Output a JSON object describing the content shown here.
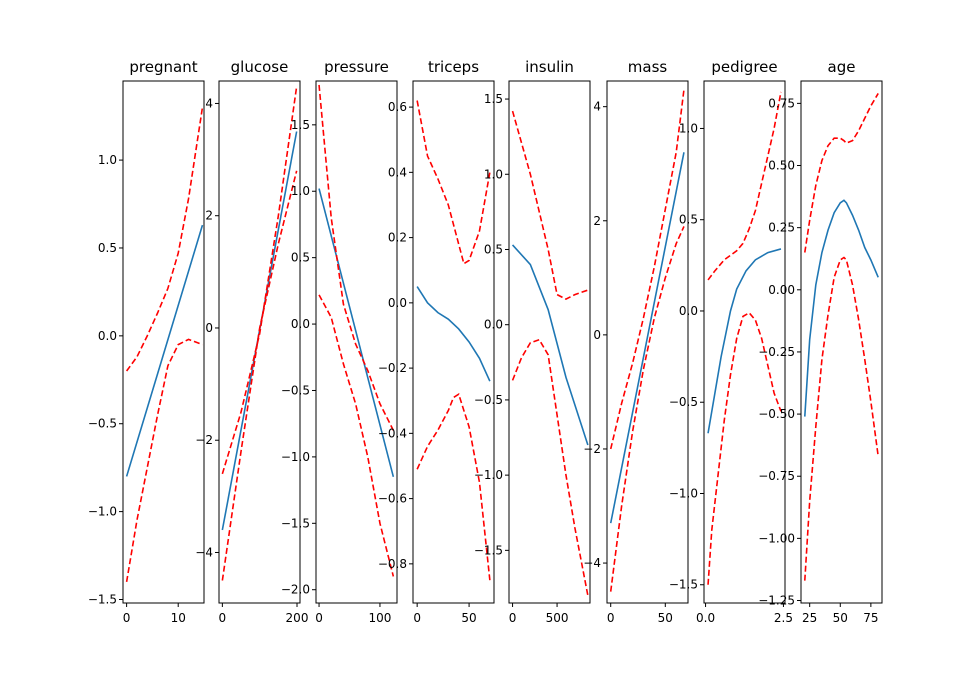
{
  "colors": {
    "fit": "#1f77b4",
    "band": "#ff0000"
  },
  "chart_data": [
    {
      "type": "line",
      "title": "pregnant",
      "xlim": [
        -0.7,
        15.0
      ],
      "ylim": [
        -1.52,
        1.45
      ],
      "xticks": [
        0,
        10
      ],
      "yticks": [
        -1.5,
        -1.0,
        -0.5,
        0.0,
        0.5,
        1.0
      ],
      "ytick_labels": [
        "−1.5",
        "−1.0",
        "−0.5",
        "0.0",
        "0.5",
        "1.0"
      ],
      "series": [
        {
          "role": "fit",
          "x": [
            0,
            14.7
          ],
          "y": [
            -0.8,
            0.63
          ]
        },
        {
          "role": "upper",
          "x": [
            0,
            2,
            4,
            6,
            8,
            10,
            12,
            14.7
          ],
          "y": [
            -0.2,
            -0.12,
            0.0,
            0.13,
            0.27,
            0.47,
            0.78,
            1.3
          ]
        },
        {
          "role": "lower",
          "x": [
            0,
            2,
            4,
            6,
            8,
            10,
            12,
            14.7
          ],
          "y": [
            -1.4,
            -1.05,
            -0.75,
            -0.45,
            -0.17,
            -0.05,
            -0.02,
            -0.05
          ]
        }
      ]
    },
    {
      "type": "line",
      "title": "glucose",
      "xlim": [
        -9,
        208
      ],
      "ylim": [
        -4.9,
        4.4
      ],
      "xticks": [
        0,
        200
      ],
      "yticks": [
        -4,
        -2,
        0,
        2,
        4
      ],
      "ytick_labels": [
        "−4",
        "−2",
        "0",
        "2",
        "4"
      ],
      "series": [
        {
          "role": "fit",
          "x": [
            0,
            199
          ],
          "y": [
            -3.6,
            3.5
          ]
        },
        {
          "role": "upper",
          "x": [
            0,
            50,
            100,
            150,
            199
          ],
          "y": [
            -2.6,
            -1.5,
            -0.1,
            2.0,
            4.3
          ]
        },
        {
          "role": "lower",
          "x": [
            0,
            50,
            100,
            150,
            199
          ],
          "y": [
            -4.5,
            -2.2,
            0.0,
            1.5,
            2.8
          ]
        }
      ]
    },
    {
      "type": "line",
      "title": "pressure",
      "xlim": [
        -5,
        128
      ],
      "ylim": [
        -2.1,
        1.83
      ],
      "xticks": [
        0,
        100
      ],
      "yticks": [
        -2.0,
        -1.5,
        -1.0,
        -0.5,
        0.0,
        0.5,
        1.0,
        1.5
      ],
      "ytick_labels": [
        "−2.0",
        "−1.5",
        "−1.0",
        "−0.5",
        "0.0",
        "0.5",
        "1.0",
        "1.5"
      ],
      "series": [
        {
          "role": "fit",
          "x": [
            0,
            122
          ],
          "y": [
            1.02,
            -1.15
          ]
        },
        {
          "role": "upper",
          "x": [
            0,
            20,
            40,
            60,
            80,
            100,
            122
          ],
          "y": [
            1.8,
            0.8,
            0.15,
            -0.15,
            -0.35,
            -0.6,
            -0.8
          ]
        },
        {
          "role": "lower",
          "x": [
            0,
            20,
            40,
            60,
            80,
            100,
            122
          ],
          "y": [
            0.22,
            0.05,
            -0.3,
            -0.6,
            -1.0,
            -1.5,
            -1.9
          ]
        }
      ]
    },
    {
      "type": "line",
      "title": "triceps",
      "xlim": [
        -4,
        74
      ],
      "ylim": [
        -0.92,
        0.68
      ],
      "xticks": [
        0,
        50
      ],
      "yticks": [
        -0.8,
        -0.6,
        -0.4,
        -0.2,
        0.0,
        0.2,
        0.4,
        0.6
      ],
      "ytick_labels": [
        "−0.8",
        "−0.6",
        "−0.4",
        "−0.2",
        "0.0",
        "0.2",
        "0.4",
        "0.6"
      ],
      "series": [
        {
          "role": "fit",
          "x": [
            0,
            10,
            20,
            30,
            40,
            50,
            60,
            70
          ],
          "y": [
            0.05,
            0.0,
            -0.03,
            -0.05,
            -0.08,
            -0.12,
            -0.17,
            -0.24
          ]
        },
        {
          "role": "upper",
          "x": [
            0,
            10,
            20,
            30,
            40,
            45,
            50,
            60,
            70
          ],
          "y": [
            0.62,
            0.45,
            0.38,
            0.3,
            0.18,
            0.12,
            0.13,
            0.22,
            0.4
          ]
        },
        {
          "role": "lower",
          "x": [
            0,
            10,
            20,
            30,
            35,
            40,
            50,
            60,
            70
          ],
          "y": [
            -0.51,
            -0.44,
            -0.39,
            -0.33,
            -0.29,
            -0.28,
            -0.38,
            -0.55,
            -0.85
          ]
        }
      ]
    },
    {
      "type": "line",
      "title": "insulin",
      "xlim": [
        -40,
        870
      ],
      "ylim": [
        -1.85,
        1.62
      ],
      "xticks": [
        0,
        500
      ],
      "yticks": [
        -1.5,
        -1.0,
        -0.5,
        0.0,
        0.5,
        1.0,
        1.5
      ],
      "ytick_labels": [
        "−1.5",
        "−1.0",
        "−0.5",
        "0.0",
        "0.5",
        "1.0",
        "1.5"
      ],
      "series": [
        {
          "role": "fit",
          "x": [
            0,
            200,
            400,
            600,
            846
          ],
          "y": [
            0.53,
            0.4,
            0.1,
            -0.35,
            -0.8
          ]
        },
        {
          "role": "upper",
          "x": [
            0,
            200,
            400,
            500,
            600,
            700,
            846
          ],
          "y": [
            1.42,
            1.0,
            0.5,
            0.2,
            0.17,
            0.2,
            0.23
          ]
        },
        {
          "role": "lower",
          "x": [
            0,
            100,
            200,
            300,
            400,
            500,
            600,
            700,
            846
          ],
          "y": [
            -0.37,
            -0.22,
            -0.12,
            -0.1,
            -0.2,
            -0.6,
            -1.0,
            -1.35,
            -1.8
          ]
        }
      ]
    },
    {
      "type": "line",
      "title": "mass",
      "xlim": [
        -3.4,
        70.8
      ],
      "ylim": [
        -4.7,
        4.45
      ],
      "xticks": [
        0,
        50
      ],
      "yticks": [
        -4,
        -2,
        0,
        2,
        4
      ],
      "ytick_labels": [
        "−4",
        "−2",
        "0",
        "2",
        "4"
      ],
      "series": [
        {
          "role": "fit",
          "x": [
            0,
            67.1
          ],
          "y": [
            -3.3,
            3.2
          ]
        },
        {
          "role": "upper",
          "x": [
            0,
            10,
            20,
            30,
            40,
            50,
            60,
            67.1
          ],
          "y": [
            -2.0,
            -1.2,
            -0.5,
            0.3,
            1.2,
            2.2,
            3.2,
            4.3
          ]
        },
        {
          "role": "lower",
          "x": [
            0,
            10,
            20,
            30,
            40,
            50,
            60,
            67.1
          ],
          "y": [
            -4.5,
            -3.0,
            -1.7,
            -0.6,
            0.3,
            1.0,
            1.6,
            1.9
          ]
        }
      ]
    },
    {
      "type": "line",
      "title": "pedigree",
      "xlim": [
        -0.05,
        2.55
      ],
      "ylim": [
        -1.6,
        1.26
      ],
      "xticks": [
        0.0,
        2.5
      ],
      "xtick_labels": [
        "0.0",
        "2.5"
      ],
      "yticks": [
        -1.5,
        -1.0,
        -0.5,
        0.0,
        0.5,
        1.0
      ],
      "ytick_labels": [
        "−1.5",
        "−1.0",
        "−0.5",
        "0.0",
        "0.5",
        "1.0"
      ],
      "series": [
        {
          "role": "fit",
          "x": [
            0.08,
            0.3,
            0.5,
            0.8,
            1.0,
            1.3,
            1.6,
            2.0,
            2.42
          ],
          "y": [
            -0.67,
            -0.45,
            -0.25,
            0.0,
            0.12,
            0.22,
            0.28,
            0.32,
            0.34
          ]
        },
        {
          "role": "upper",
          "x": [
            0.08,
            0.3,
            0.6,
            1.0,
            1.2,
            1.4,
            1.6,
            1.8,
            2.0,
            2.2,
            2.42
          ],
          "y": [
            0.17,
            0.22,
            0.28,
            0.33,
            0.37,
            0.45,
            0.55,
            0.7,
            0.85,
            1.0,
            1.2
          ]
        },
        {
          "role": "lower",
          "x": [
            0.08,
            0.2,
            0.4,
            0.6,
            0.8,
            1.0,
            1.2,
            1.4,
            1.6,
            1.8,
            2.0,
            2.2,
            2.42
          ],
          "y": [
            -1.5,
            -1.2,
            -0.9,
            -0.6,
            -0.35,
            -0.15,
            -0.03,
            -0.01,
            -0.05,
            -0.15,
            -0.3,
            -0.45,
            -0.55
          ]
        }
      ]
    },
    {
      "type": "line",
      "title": "age",
      "xlim": [
        17.9,
        84.1
      ],
      "ylim": [
        -1.26,
        0.84
      ],
      "xticks": [
        25,
        50,
        75
      ],
      "yticks": [
        -1.25,
        -1.0,
        -0.75,
        -0.5,
        -0.25,
        0.0,
        0.25,
        0.5,
        0.75
      ],
      "ytick_labels": [
        "−1.25",
        "−1.00",
        "−0.75",
        "−0.50",
        "−0.25",
        "0.00",
        "0.25",
        "0.50",
        "0.75"
      ],
      "series": [
        {
          "role": "fit",
          "x": [
            21,
            25,
            30,
            35,
            40,
            45,
            50,
            53,
            55,
            60,
            65,
            70,
            75,
            81
          ],
          "y": [
            -0.51,
            -0.2,
            0.02,
            0.15,
            0.24,
            0.31,
            0.35,
            0.36,
            0.35,
            0.3,
            0.24,
            0.17,
            0.12,
            0.05
          ]
        },
        {
          "role": "upper",
          "x": [
            21,
            25,
            30,
            35,
            40,
            45,
            50,
            53,
            55,
            60,
            65,
            70,
            75,
            81
          ],
          "y": [
            0.15,
            0.28,
            0.42,
            0.52,
            0.58,
            0.61,
            0.61,
            0.6,
            0.59,
            0.6,
            0.64,
            0.69,
            0.74,
            0.79
          ]
        },
        {
          "role": "lower",
          "x": [
            21,
            25,
            30,
            35,
            40,
            45,
            50,
            53,
            55,
            60,
            65,
            70,
            75,
            81
          ],
          "y": [
            -1.17,
            -0.85,
            -0.55,
            -0.28,
            -0.1,
            0.05,
            0.12,
            0.13,
            0.12,
            0.02,
            -0.12,
            -0.28,
            -0.45,
            -0.67
          ]
        }
      ]
    }
  ]
}
